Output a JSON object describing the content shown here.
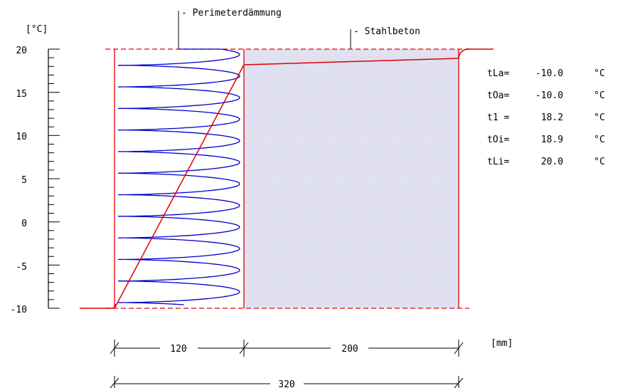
{
  "diagram": {
    "unit_temperature": "[°C]",
    "unit_length": "[mm]",
    "y_ticks": [
      "20",
      "15",
      "10",
      "5",
      "0",
      "-5",
      "-10"
    ],
    "layers": [
      {
        "name": "Perimeterdämmung",
        "label": "- Perimeterdämmung",
        "thickness_mm": 120
      },
      {
        "name": "Stahlbeton",
        "label": "- Stahlbeton",
        "thickness_mm": 200
      }
    ],
    "dimensions": {
      "layer1": "120",
      "layer2": "200",
      "total": "320"
    },
    "temperatures": [
      {
        "label": "tLa=",
        "value": "-10.0",
        "unit": "°C"
      },
      {
        "label": "tOa=",
        "value": "-10.0",
        "unit": "°C"
      },
      {
        "label": "t1 =",
        "value": "18.2",
        "unit": "°C"
      },
      {
        "label": "tOi=",
        "value": "18.9",
        "unit": "°C"
      },
      {
        "label": "tLi=",
        "value": "20.0",
        "unit": "°C"
      }
    ],
    "colors": {
      "profile": "#e00000",
      "insulation": "#0000cc",
      "concrete_fill": "#dcdcf0",
      "axis": "#000000"
    }
  }
}
